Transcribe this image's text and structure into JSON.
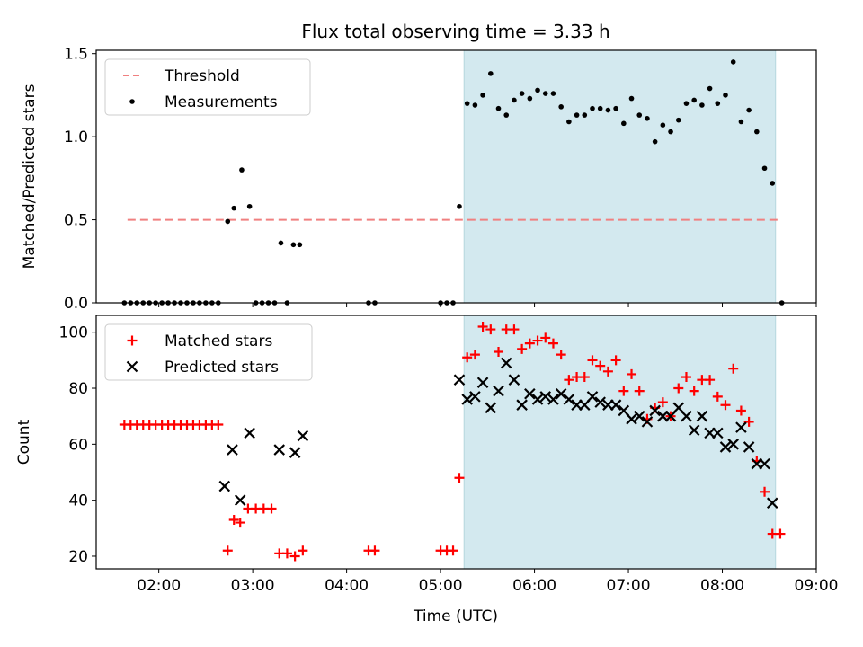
{
  "chart_data": {
    "title": "Flux total observing time = 3.33 h",
    "xlabel": "Time (UTC)",
    "x_ticks": [
      "02:00",
      "03:00",
      "04:00",
      "05:00",
      "06:00",
      "07:00",
      "08:00",
      "09:00"
    ],
    "shaded_interval": [
      "05:15",
      "08:34"
    ],
    "shade_color": "#d3e9ef",
    "panels": [
      {
        "type": "scatter",
        "ylabel": "Matched/Predicted stars",
        "ylim": [
          0,
          1.52
        ],
        "y_ticks": [
          "0.0",
          "0.5",
          "1.0",
          "1.5"
        ],
        "legend": {
          "placement": "upper-left",
          "entries": [
            "Threshold",
            "Measurements"
          ]
        },
        "series": [
          {
            "name": "Threshold",
            "marker": "dashed-line",
            "color": "#f08080",
            "points": [
              [
                "01:40",
                0.5
              ],
              [
                "08:38",
                0.5
              ]
            ]
          },
          {
            "name": "Measurements",
            "marker": "dot",
            "color": "#000000",
            "points": [
              [
                "01:38",
                0
              ],
              [
                "01:42",
                0
              ],
              [
                "01:46",
                0
              ],
              [
                "01:50",
                0
              ],
              [
                "01:54",
                0
              ],
              [
                "01:58",
                0
              ],
              [
                "02:02",
                0
              ],
              [
                "02:06",
                0
              ],
              [
                "02:10",
                0
              ],
              [
                "02:14",
                0
              ],
              [
                "02:18",
                0
              ],
              [
                "02:22",
                0
              ],
              [
                "02:26",
                0
              ],
              [
                "02:30",
                0
              ],
              [
                "02:34",
                0
              ],
              [
                "02:38",
                0
              ],
              [
                "02:44",
                0.49
              ],
              [
                "02:48",
                0.57
              ],
              [
                "02:53",
                0.8
              ],
              [
                "02:58",
                0.58
              ],
              [
                "03:02",
                0
              ],
              [
                "03:06",
                0
              ],
              [
                "03:10",
                0
              ],
              [
                "03:14",
                0
              ],
              [
                "03:18",
                0.36
              ],
              [
                "03:22",
                0
              ],
              [
                "03:26",
                0.35
              ],
              [
                "03:30",
                0.35
              ],
              [
                "04:14",
                0
              ],
              [
                "04:18",
                0
              ],
              [
                "05:00",
                0
              ],
              [
                "05:04",
                0
              ],
              [
                "05:08",
                0
              ],
              [
                "05:12",
                0.58
              ],
              [
                "05:17",
                1.2
              ],
              [
                "05:22",
                1.19
              ],
              [
                "05:27",
                1.25
              ],
              [
                "05:32",
                1.38
              ],
              [
                "05:37",
                1.17
              ],
              [
                "05:42",
                1.13
              ],
              [
                "05:47",
                1.22
              ],
              [
                "05:52",
                1.26
              ],
              [
                "05:57",
                1.23
              ],
              [
                "06:02",
                1.28
              ],
              [
                "06:07",
                1.26
              ],
              [
                "06:12",
                1.26
              ],
              [
                "06:17",
                1.18
              ],
              [
                "06:22",
                1.09
              ],
              [
                "06:27",
                1.13
              ],
              [
                "06:32",
                1.13
              ],
              [
                "06:37",
                1.17
              ],
              [
                "06:42",
                1.17
              ],
              [
                "06:47",
                1.16
              ],
              [
                "06:52",
                1.17
              ],
              [
                "06:57",
                1.08
              ],
              [
                "07:02",
                1.23
              ],
              [
                "07:07",
                1.13
              ],
              [
                "07:12",
                1.11
              ],
              [
                "07:17",
                0.97
              ],
              [
                "07:22",
                1.07
              ],
              [
                "07:27",
                1.03
              ],
              [
                "07:32",
                1.1
              ],
              [
                "07:37",
                1.2
              ],
              [
                "07:42",
                1.22
              ],
              [
                "07:47",
                1.19
              ],
              [
                "07:52",
                1.29
              ],
              [
                "07:57",
                1.2
              ],
              [
                "08:02",
                1.25
              ],
              [
                "08:07",
                1.45
              ],
              [
                "08:12",
                1.09
              ],
              [
                "08:17",
                1.16
              ],
              [
                "08:22",
                1.03
              ],
              [
                "08:27",
                0.81
              ],
              [
                "08:32",
                0.72
              ],
              [
                "08:38",
                0
              ]
            ]
          }
        ]
      },
      {
        "type": "scatter",
        "ylabel": "Count",
        "ylim": [
          15.5,
          106
        ],
        "y_ticks": [
          "20",
          "40",
          "60",
          "80",
          "100"
        ],
        "legend": {
          "placement": "upper-left",
          "entries": [
            "Matched stars",
            "Predicted stars"
          ]
        },
        "series": [
          {
            "name": "Matched stars",
            "marker": "plus",
            "color": "#ff0000",
            "points": [
              [
                "01:38",
                67
              ],
              [
                "01:42",
                67
              ],
              [
                "01:46",
                67
              ],
              [
                "01:50",
                67
              ],
              [
                "01:54",
                67
              ],
              [
                "01:58",
                67
              ],
              [
                "02:02",
                67
              ],
              [
                "02:06",
                67
              ],
              [
                "02:10",
                67
              ],
              [
                "02:14",
                67
              ],
              [
                "02:18",
                67
              ],
              [
                "02:22",
                67
              ],
              [
                "02:26",
                67
              ],
              [
                "02:30",
                67
              ],
              [
                "02:34",
                67
              ],
              [
                "02:38",
                67
              ],
              [
                "02:44",
                22
              ],
              [
                "02:48",
                33
              ],
              [
                "02:52",
                32
              ],
              [
                "02:57",
                37
              ],
              [
                "03:02",
                37
              ],
              [
                "03:07",
                37
              ],
              [
                "03:12",
                37
              ],
              [
                "03:17",
                21
              ],
              [
                "03:22",
                21
              ],
              [
                "03:27",
                20
              ],
              [
                "03:32",
                22
              ],
              [
                "04:14",
                22
              ],
              [
                "04:18",
                22
              ],
              [
                "05:00",
                22
              ],
              [
                "05:04",
                22
              ],
              [
                "05:08",
                22
              ],
              [
                "05:12",
                48
              ],
              [
                "05:17",
                91
              ],
              [
                "05:22",
                92
              ],
              [
                "05:27",
                102
              ],
              [
                "05:32",
                101
              ],
              [
                "05:37",
                93
              ],
              [
                "05:42",
                101
              ],
              [
                "05:47",
                101
              ],
              [
                "05:52",
                94
              ],
              [
                "05:57",
                96
              ],
              [
                "06:02",
                97
              ],
              [
                "06:07",
                98
              ],
              [
                "06:12",
                96
              ],
              [
                "06:17",
                92
              ],
              [
                "06:22",
                83
              ],
              [
                "06:27",
                84
              ],
              [
                "06:32",
                84
              ],
              [
                "06:37",
                90
              ],
              [
                "06:42",
                88
              ],
              [
                "06:47",
                86
              ],
              [
                "06:52",
                90
              ],
              [
                "06:57",
                79
              ],
              [
                "07:02",
                85
              ],
              [
                "07:07",
                79
              ],
              [
                "07:12",
                69
              ],
              [
                "07:17",
                73
              ],
              [
                "07:22",
                75
              ],
              [
                "07:27",
                70
              ],
              [
                "07:32",
                80
              ],
              [
                "07:37",
                84
              ],
              [
                "07:42",
                79
              ],
              [
                "07:47",
                83
              ],
              [
                "07:52",
                83
              ],
              [
                "07:57",
                77
              ],
              [
                "08:02",
                74
              ],
              [
                "08:07",
                87
              ],
              [
                "08:12",
                72
              ],
              [
                "08:17",
                68
              ],
              [
                "08:22",
                54
              ],
              [
                "08:27",
                43
              ],
              [
                "08:32",
                28
              ],
              [
                "08:37",
                28
              ]
            ]
          },
          {
            "name": "Predicted stars",
            "marker": "x",
            "color": "#000000",
            "points": [
              [
                "02:42",
                45
              ],
              [
                "02:47",
                58
              ],
              [
                "02:52",
                40
              ],
              [
                "02:58",
                64
              ],
              [
                "03:17",
                58
              ],
              [
                "03:27",
                57
              ],
              [
                "03:32",
                63
              ],
              [
                "05:12",
                83
              ],
              [
                "05:17",
                76
              ],
              [
                "05:22",
                77
              ],
              [
                "05:27",
                82
              ],
              [
                "05:32",
                73
              ],
              [
                "05:37",
                79
              ],
              [
                "05:42",
                89
              ],
              [
                "05:47",
                83
              ],
              [
                "05:52",
                74
              ],
              [
                "05:57",
                78
              ],
              [
                "06:02",
                76
              ],
              [
                "06:07",
                77
              ],
              [
                "06:12",
                76
              ],
              [
                "06:17",
                78
              ],
              [
                "06:22",
                76
              ],
              [
                "06:27",
                74
              ],
              [
                "06:32",
                74
              ],
              [
                "06:37",
                77
              ],
              [
                "06:42",
                75
              ],
              [
                "06:47",
                74
              ],
              [
                "06:52",
                74
              ],
              [
                "06:57",
                72
              ],
              [
                "07:02",
                69
              ],
              [
                "07:07",
                70
              ],
              [
                "07:12",
                68
              ],
              [
                "07:17",
                72
              ],
              [
                "07:22",
                70
              ],
              [
                "07:27",
                70
              ],
              [
                "07:32",
                73
              ],
              [
                "07:37",
                70
              ],
              [
                "07:42",
                65
              ],
              [
                "07:47",
                70
              ],
              [
                "07:52",
                64
              ],
              [
                "07:57",
                64
              ],
              [
                "08:02",
                59
              ],
              [
                "08:07",
                60
              ],
              [
                "08:12",
                66
              ],
              [
                "08:17",
                59
              ],
              [
                "08:22",
                53
              ],
              [
                "08:27",
                53
              ],
              [
                "08:32",
                39
              ]
            ]
          }
        ]
      }
    ]
  }
}
